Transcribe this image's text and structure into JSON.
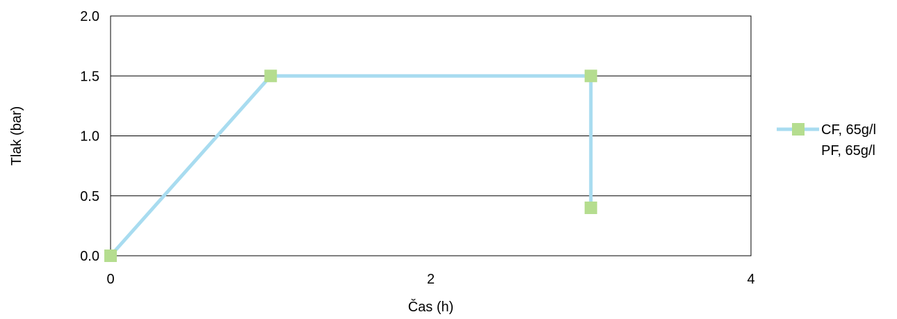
{
  "chart_data": {
    "type": "line",
    "title": "",
    "xlabel": "Čas (h)",
    "ylabel": "Tlak (bar)",
    "xlim": [
      0,
      4
    ],
    "ylim": [
      0,
      2
    ],
    "xticks": [
      "0",
      "2",
      "4"
    ],
    "yticks": [
      "0.0",
      "0.5",
      "1.0",
      "1.5",
      "2.0"
    ],
    "grid": "horizontal",
    "legend_position": "right",
    "series": [
      {
        "name": "CF, 65g/l",
        "line_color": "#a8dcf0",
        "marker_color": "#b5dd8f",
        "marker": "square",
        "points": [
          {
            "x": 0,
            "y": 0
          },
          {
            "x": 1,
            "y": 1.5
          },
          {
            "x": 3,
            "y": 1.5
          },
          {
            "x": 3,
            "y": 0.4
          }
        ]
      },
      {
        "name": "PF, 65g/l",
        "points": []
      }
    ]
  }
}
